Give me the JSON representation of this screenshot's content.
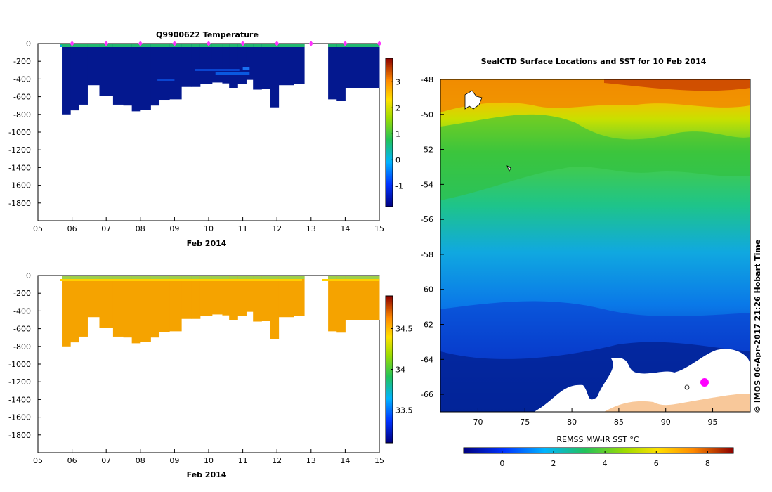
{
  "chart_data": [
    {
      "type": "heatmap",
      "title": "Q9900622  Temperature",
      "xlabel": "Feb 2014",
      "x_ticks": [
        "05",
        "06",
        "07",
        "08",
        "09",
        "10",
        "11",
        "12",
        "13",
        "14",
        "15"
      ],
      "xlim": [
        5,
        15
      ],
      "ylim": [
        -2000,
        0
      ],
      "y_ticks": [
        "0",
        "-200",
        "-400",
        "-600",
        "-800",
        "-1000",
        "-1200",
        "-1400",
        "-1600",
        "-1800"
      ],
      "colorbar": {
        "range": [
          -1.8,
          3.9
        ],
        "ticks": [
          "-1",
          "0",
          "1",
          "2",
          "3"
        ]
      },
      "profiles": [
        {
          "day": 5.7,
          "depth": 800
        },
        {
          "day": 5.95,
          "depth": 755
        },
        {
          "day": 6.2,
          "depth": 690
        },
        {
          "day": 6.45,
          "depth": 470
        },
        {
          "day": 6.8,
          "depth": 590
        },
        {
          "day": 7.2,
          "depth": 690
        },
        {
          "day": 7.5,
          "depth": 700
        },
        {
          "day": 7.75,
          "depth": 765
        },
        {
          "day": 8.0,
          "depth": 750
        },
        {
          "day": 8.3,
          "depth": 700
        },
        {
          "day": 8.55,
          "depth": 635
        },
        {
          "day": 8.85,
          "depth": 630
        },
        {
          "day": 9.2,
          "depth": 490
        },
        {
          "day": 9.5,
          "depth": 490
        },
        {
          "day": 9.75,
          "depth": 460
        },
        {
          "day": 10.1,
          "depth": 440
        },
        {
          "day": 10.4,
          "depth": 450
        },
        {
          "day": 10.6,
          "depth": 500
        },
        {
          "day": 10.85,
          "depth": 460
        },
        {
          "day": 11.1,
          "depth": 410
        },
        {
          "day": 11.3,
          "depth": 520
        },
        {
          "day": 11.55,
          "depth": 510
        },
        {
          "day": 11.8,
          "depth": 720
        },
        {
          "day": 12.05,
          "depth": 470
        },
        {
          "day": 12.5,
          "depth": 460
        }
      ],
      "profiles_after_gap": [
        {
          "day": 13.5,
          "depth": 630
        },
        {
          "day": 13.75,
          "depth": 645
        },
        {
          "day": 14.0,
          "depth": 500
        },
        {
          "day": 14.5,
          "depth": 500
        }
      ],
      "gap": [
        12.8,
        13.4
      ],
      "markers": [
        6.0,
        7.0,
        8.0,
        9.0,
        10.0,
        11.0,
        12.0,
        13.0,
        14.0,
        15.0
      ]
    },
    {
      "type": "heatmap",
      "title": "",
      "xlabel": "Feb 2014",
      "x_ticks": [
        "05",
        "06",
        "07",
        "08",
        "09",
        "10",
        "11",
        "12",
        "13",
        "14",
        "15"
      ],
      "xlim": [
        5,
        15
      ],
      "ylim": [
        -2000,
        0
      ],
      "y_ticks": [
        "0",
        "-200",
        "-400",
        "-600",
        "-800",
        "-1000",
        "-1200",
        "-1400",
        "-1600",
        "-1800"
      ],
      "colorbar": {
        "range": [
          33.1,
          34.9
        ],
        "ticks": [
          "33.5",
          "34",
          "34.5"
        ]
      }
    },
    {
      "type": "heatmap",
      "title": "SealCTD Surface Locations and SST for 10 Feb 2014",
      "x_ticks": [
        "70",
        "75",
        "80",
        "85",
        "90",
        "95"
      ],
      "xlim": [
        66,
        99
      ],
      "ylim": [
        -67,
        -48
      ],
      "y_ticks": [
        "-48",
        "-50",
        "-52",
        "-54",
        "-56",
        "-58",
        "-60",
        "-62",
        "-64",
        "-66"
      ],
      "colorbar": {
        "label": "REMSS MW-IR SST °C",
        "range": [
          -1.5,
          9
        ],
        "ticks": [
          "0",
          "2",
          "4",
          "6",
          "8"
        ]
      },
      "side_note": "©  IMOS 06-Apr-2017 21:26 Hobart Time"
    }
  ]
}
